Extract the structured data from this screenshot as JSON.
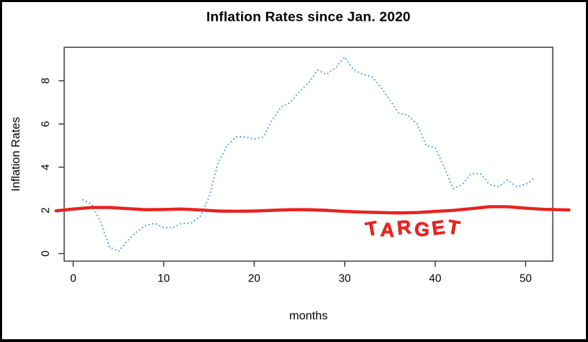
{
  "chart_data": {
    "type": "line",
    "title": "Inflation Rates since Jan. 2020",
    "xlabel": "months",
    "ylabel": "Inflation Rates",
    "xlim": [
      -1,
      53
    ],
    "ylim": [
      -0.35,
      9.55
    ],
    "x_ticks": [
      0,
      10,
      20,
      30,
      40,
      50
    ],
    "y_ticks": [
      0,
      2,
      4,
      6,
      8
    ],
    "grid": false,
    "legend": "none",
    "series": [
      {
        "name": "inflation-rate",
        "style": "dotted",
        "color": "#55a0e8",
        "x": [
          1,
          2,
          3,
          4,
          5,
          6,
          7,
          8,
          9,
          10,
          11,
          12,
          13,
          14,
          15,
          16,
          17,
          18,
          19,
          20,
          21,
          22,
          23,
          24,
          25,
          26,
          27,
          28,
          29,
          30,
          31,
          32,
          33,
          34,
          35,
          36,
          37,
          38,
          39,
          40,
          41,
          42,
          43,
          44,
          45,
          46,
          47,
          48,
          49,
          50,
          51
        ],
        "values": [
          2.5,
          2.3,
          1.5,
          0.3,
          0.1,
          0.6,
          1.0,
          1.3,
          1.4,
          1.2,
          1.2,
          1.4,
          1.4,
          1.7,
          2.6,
          4.2,
          5.0,
          5.4,
          5.4,
          5.3,
          5.4,
          6.2,
          6.8,
          7.0,
          7.5,
          7.9,
          8.5,
          8.3,
          8.6,
          9.1,
          8.5,
          8.3,
          8.2,
          7.7,
          7.1,
          6.5,
          6.4,
          6.0,
          5.0,
          4.9,
          4.0,
          3.0,
          3.2,
          3.7,
          3.7,
          3.2,
          3.1,
          3.4,
          3.1,
          3.2,
          3.5
        ]
      },
      {
        "name": "target-line",
        "style": "hand-drawn-solid",
        "color": "#e8231f",
        "x": [
          -1.9,
          0,
          2,
          4,
          6,
          8,
          10,
          12,
          14,
          16,
          18,
          20,
          22,
          24,
          26,
          28,
          30,
          32,
          34,
          36,
          38,
          40,
          42,
          44,
          46,
          48,
          50,
          52,
          54.8
        ],
        "values": [
          1.98,
          2.06,
          2.13,
          2.13,
          2.08,
          2.03,
          2.04,
          2.06,
          2.02,
          1.97,
          1.96,
          1.97,
          2.0,
          2.03,
          2.03,
          2.0,
          1.95,
          1.92,
          1.9,
          1.88,
          1.9,
          1.95,
          2.0,
          2.08,
          2.17,
          2.17,
          2.1,
          2.05,
          2.02
        ]
      }
    ],
    "annotations": [
      {
        "text": "TARGET",
        "x": 37.7,
        "y": 1.15,
        "color": "#e8231f"
      }
    ]
  },
  "colors": {
    "background": "#ffffff",
    "border": "#000000",
    "axis": "#3d3d3d",
    "inflation_line": "#55a0e8",
    "target_red": "#e8231f"
  }
}
